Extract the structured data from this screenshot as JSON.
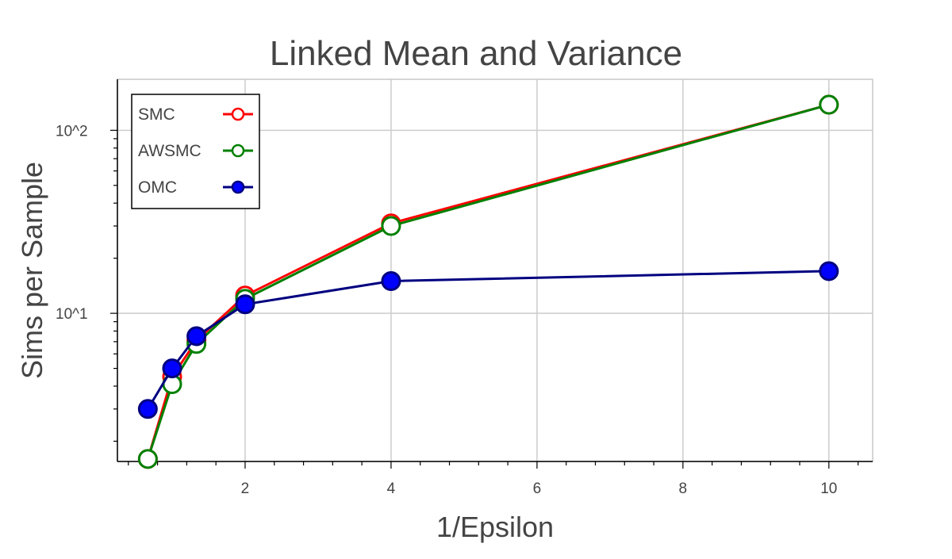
{
  "chart_data": {
    "type": "line",
    "title": "Linked Mean and Variance",
    "xlabel": "1/Epsilon",
    "ylabel": "Sims per Sample",
    "xlim": [
      0.25,
      10.6
    ],
    "ylim": [
      1.55,
      190
    ],
    "yscale": "log",
    "grid": true,
    "legend_position": "top-left",
    "x_ticks": [
      {
        "value": 2,
        "label": "2"
      },
      {
        "value": 4,
        "label": "4"
      },
      {
        "value": 6,
        "label": "6"
      },
      {
        "value": 8,
        "label": "8"
      },
      {
        "value": 10,
        "label": "10"
      }
    ],
    "y_ticks": [
      {
        "value": 10,
        "label": "10^1"
      },
      {
        "value": 100,
        "label": "10^2"
      }
    ],
    "series": [
      {
        "name": "SMC",
        "color": "#ff0000",
        "marker": "open-circle",
        "x": [
          0.667,
          1.0,
          1.333,
          2.0,
          4.0,
          10.0
        ],
        "y": [
          1.6,
          4.5,
          7.1,
          12.5,
          31,
          138
        ]
      },
      {
        "name": "AWSMC",
        "color": "#008000",
        "marker": "open-circle",
        "x": [
          0.667,
          1.0,
          1.333,
          2.0,
          4.0,
          10.0
        ],
        "y": [
          1.6,
          4.1,
          6.8,
          12.0,
          30,
          138
        ]
      },
      {
        "name": "OMC",
        "color": "#000080",
        "fill": "#0000ff",
        "marker": "filled-circle",
        "x": [
          0.667,
          1.0,
          1.333,
          2.0,
          4.0,
          10.0
        ],
        "y": [
          3.0,
          5.0,
          7.5,
          11.2,
          15,
          17
        ]
      }
    ]
  }
}
